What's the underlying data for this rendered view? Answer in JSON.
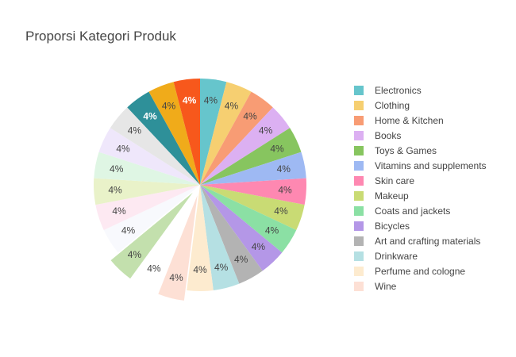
{
  "chart_data": {
    "type": "pie",
    "title": "Proporsi Kategori Produk",
    "legend_position": "right",
    "slices": [
      {
        "label": "Electronics",
        "value": 4,
        "text": "4%",
        "color": "#66c5cc",
        "text_color": "#444444",
        "bold": false,
        "pull": 0
      },
      {
        "label": "Clothing",
        "value": 4,
        "text": "4%",
        "color": "#f6cf71",
        "text_color": "#444444",
        "bold": false,
        "pull": 0
      },
      {
        "label": "Home & Kitchen",
        "value": 4,
        "text": "4%",
        "color": "#f89c74",
        "text_color": "#444444",
        "bold": false,
        "pull": 0
      },
      {
        "label": "Books",
        "value": 4,
        "text": "4%",
        "color": "#dcb0f2",
        "text_color": "#444444",
        "bold": false,
        "pull": 0
      },
      {
        "label": "Toys & Games",
        "value": 4,
        "text": "4%",
        "color": "#87c55f",
        "text_color": "#444444",
        "bold": false,
        "pull": 0
      },
      {
        "label": "Vitamins and supplements",
        "value": 4,
        "text": "4%",
        "color": "#9eb9f3",
        "text_color": "#444444",
        "bold": false,
        "pull": 0
      },
      {
        "label": "Skin care",
        "value": 4,
        "text": "4%",
        "color": "#fe88b1",
        "text_color": "#444444",
        "bold": false,
        "pull": 0
      },
      {
        "label": "Makeup",
        "value": 4,
        "text": "4%",
        "color": "#c9db74",
        "text_color": "#444444",
        "bold": false,
        "pull": 0
      },
      {
        "label": "Coats and jackets",
        "value": 4,
        "text": "4%",
        "color": "#8be0a4",
        "text_color": "#444444",
        "bold": false,
        "pull": 0
      },
      {
        "label": "Bicycles",
        "value": 4,
        "text": "4%",
        "color": "#b497e7",
        "text_color": "#444444",
        "bold": false,
        "pull": 0
      },
      {
        "label": "Art and crafting materials",
        "value": 4,
        "text": "4%",
        "color": "#b3b3b3",
        "text_color": "#444444",
        "bold": false,
        "pull": 0
      },
      {
        "label": "Drinkware",
        "value": 4,
        "text": "4%",
        "color": "#b5e0e3",
        "text_color": "#444444",
        "bold": false,
        "pull": 0
      },
      {
        "label": "Perfume and cologne",
        "value": 4,
        "text": "4%",
        "color": "#fdebcf",
        "text_color": "#444444",
        "bold": false,
        "pull": 0
      },
      {
        "label": "Wine",
        "value": 4,
        "text": "4%",
        "color": "#fde0d5",
        "text_color": "#444444",
        "bold": false,
        "pull": 0.1
      },
      {
        "label": "",
        "value": 4,
        "text": "4%",
        "color": "#ffffff",
        "text_color": "#444444",
        "bold": false,
        "pull": 0.1
      },
      {
        "label": "",
        "value": 4,
        "text": "4%",
        "color": "#c3e0ad",
        "text_color": "#444444",
        "bold": false,
        "pull": 0.1
      },
      {
        "label": "",
        "value": 4,
        "text": "4%",
        "color": "#f8f9fd",
        "text_color": "#444444",
        "bold": false,
        "pull": 0
      },
      {
        "label": "",
        "value": 4,
        "text": "4%",
        "color": "#fde9f2",
        "text_color": "#444444",
        "bold": false,
        "pull": 0
      },
      {
        "label": "",
        "value": 4,
        "text": "4%",
        "color": "#e9f2c9",
        "text_color": "#444444",
        "bold": false,
        "pull": 0
      },
      {
        "label": "",
        "value": 4,
        "text": "4%",
        "color": "#dff6e4",
        "text_color": "#444444",
        "bold": false,
        "pull": 0
      },
      {
        "label": "",
        "value": 4,
        "text": "4%",
        "color": "#efe7fb",
        "text_color": "#444444",
        "bold": false,
        "pull": 0
      },
      {
        "label": "",
        "value": 4,
        "text": "4%",
        "color": "#e6e6e6",
        "text_color": "#444444",
        "bold": false,
        "pull": 0
      },
      {
        "label": "",
        "value": 4,
        "text": "4%",
        "color": "#2e9099",
        "text_color": "#ffffff",
        "bold": true,
        "pull": 0
      },
      {
        "label": "",
        "value": 4,
        "text": "4%",
        "color": "#f0ab1a",
        "text_color": "#444444",
        "bold": false,
        "pull": 0
      },
      {
        "label": "",
        "value": 4,
        "text": "4%",
        "color": "#f7581c",
        "text_color": "#ffffff",
        "bold": true,
        "pull": 0
      }
    ]
  }
}
